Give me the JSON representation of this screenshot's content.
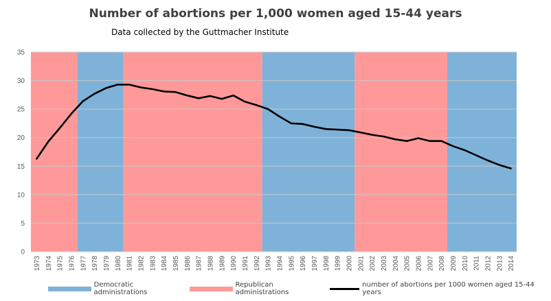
{
  "chart_data": {
    "type": "line",
    "title": "Number of abortions per 1,000 women aged 15-44 years",
    "subtitle": "Data collected by the Guttmacher Institute",
    "categories": [
      "1973",
      "1974",
      "1975",
      "1976",
      "1977",
      "1978",
      "1979",
      "1980",
      "1981",
      "1982",
      "1983",
      "1984",
      "1985",
      "1986",
      "1987",
      "1988",
      "1989",
      "1990",
      "1991",
      "1992",
      "1993",
      "1994",
      "1995",
      "1996",
      "1997",
      "1998",
      "1999",
      "2000",
      "2001",
      "2002",
      "2003",
      "2004",
      "2005",
      "2006",
      "2007",
      "2008",
      "2009",
      "2010",
      "2011",
      "2012",
      "2013",
      "2014"
    ],
    "series": [
      {
        "name": "number of abortions per 1000 women aged 15-44 years",
        "color": "#000000",
        "values": [
          16.3,
          19.3,
          21.7,
          24.2,
          26.4,
          27.7,
          28.7,
          29.3,
          29.3,
          28.8,
          28.5,
          28.1,
          28.0,
          27.4,
          26.9,
          27.3,
          26.8,
          27.4,
          26.3,
          25.7,
          25.0,
          23.7,
          22.5,
          22.4,
          21.9,
          21.5,
          21.4,
          21.3,
          20.9,
          20.5,
          20.2,
          19.7,
          19.4,
          19.9,
          19.4,
          19.4,
          18.5,
          17.8,
          16.9,
          16.0,
          15.2,
          14.6
        ]
      }
    ],
    "bands": [
      {
        "label": "Republican administrations",
        "color": "#ff9999",
        "start_index": 0,
        "end_index": 3
      },
      {
        "label": "Democratic administrations",
        "color": "#7fb2d9",
        "start_index": 4,
        "end_index": 7
      },
      {
        "label": "Republican administrations",
        "color": "#ff9999",
        "start_index": 8,
        "end_index": 19
      },
      {
        "label": "Democratic administrations",
        "color": "#7fb2d9",
        "start_index": 20,
        "end_index": 27
      },
      {
        "label": "Republican administrations",
        "color": "#ff9999",
        "start_index": 28,
        "end_index": 35
      },
      {
        "label": "Democratic administrations",
        "color": "#7fb2d9",
        "start_index": 36,
        "end_index": 41
      }
    ],
    "ylim": [
      0,
      35
    ],
    "yticks": [
      "0",
      "5",
      "10",
      "15",
      "20",
      "25",
      "30",
      "35"
    ],
    "grid": true,
    "legend_position": "bottom",
    "legend": [
      {
        "label": "Democratic administrations",
        "color": "#7fb2d9",
        "kind": "band"
      },
      {
        "label": "Republican administrations",
        "color": "#ff9999",
        "kind": "band"
      },
      {
        "label": "number of abortions per 1000 women aged 15-44 years",
        "color": "#000000",
        "kind": "line"
      }
    ]
  }
}
